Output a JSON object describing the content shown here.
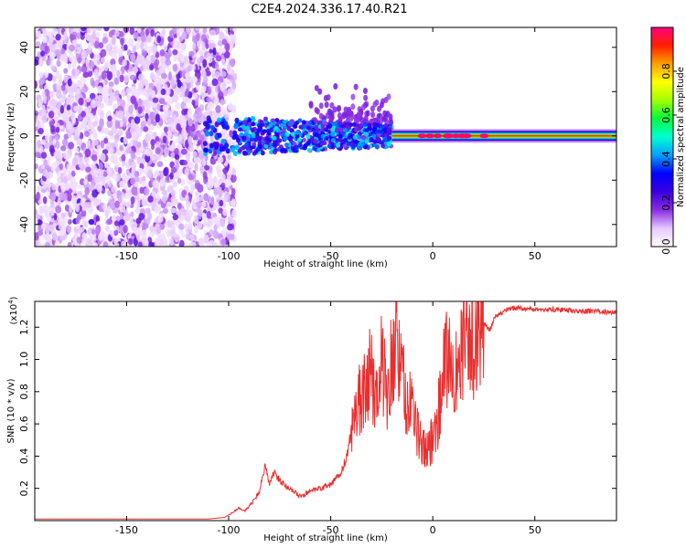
{
  "title": "C2E4.2024.336.17.40.R21",
  "colors": {
    "snr_line": "#e83030",
    "frame": "#000000",
    "colormap": [
      "#ffffff",
      "#e6c8ff",
      "#8a2be2",
      "#3a00e0",
      "#0000ff",
      "#00a0ff",
      "#00ffd0",
      "#00ff40",
      "#a0ff00",
      "#ffff00",
      "#ffa000",
      "#ff2000",
      "#ff0080"
    ]
  },
  "chart_data": [
    {
      "type": "heatmap",
      "xlabel": "Height of straight line (km)",
      "ylabel": "Frequency (Hz)",
      "xlim": [
        -195,
        90
      ],
      "ylim": [
        -50,
        49
      ],
      "xticks": [
        -150,
        -100,
        -50,
        0,
        50
      ],
      "xtick_labels": [
        "-150",
        "-100",
        "-50",
        "0",
        "50"
      ],
      "yticks": [
        -40,
        -20,
        0,
        20,
        40
      ],
      "ytick_labels": [
        "-40",
        "-20",
        "0",
        "20",
        "40"
      ],
      "colorbar": {
        "label": "Normalized spectral amplitude",
        "range": [
          0,
          1
        ],
        "ticks": [
          0.0,
          0.2,
          0.4,
          0.6,
          0.8
        ],
        "tick_labels": [
          "0.0",
          "0.2",
          "0.4",
          "0.6",
          "0.8"
        ]
      },
      "features": [
        {
          "region": "noise",
          "x_range": [
            -195,
            -97
          ],
          "y_range": [
            -50,
            49
          ],
          "amplitude": 0.1
        },
        {
          "region": "onset",
          "x_range": [
            -112,
            -95
          ],
          "y_range": [
            -8,
            8
          ],
          "amplitude": 0.35
        },
        {
          "region": "signal-band",
          "x_range": [
            -95,
            -20
          ],
          "y_center": 0,
          "y_halfwidth": 6,
          "amplitude": 0.45
        },
        {
          "region": "sidelobes",
          "x_range": [
            -60,
            -20
          ],
          "y_range": [
            5,
            24
          ],
          "amplitude": 0.15
        },
        {
          "region": "strong-carrier",
          "x_range": [
            -20,
            90
          ],
          "y_center": 0,
          "y_halfwidth": 2,
          "amplitude": 0.95
        }
      ]
    },
    {
      "type": "line",
      "xlabel": "Height of straight line (km)",
      "ylabel": "SNR (10 * v/v)",
      "yscale_label": "(x10",
      "yscale_exp": "4",
      "yscale_close": ")",
      "xlim": [
        -195,
        90
      ],
      "ylim": [
        0,
        1.36
      ],
      "xticks": [
        -150,
        -100,
        -50,
        0,
        50
      ],
      "xtick_labels": [
        "-150",
        "-100",
        "-50",
        "0",
        "50"
      ],
      "yticks": [
        0.2,
        0.4,
        0.6,
        0.8,
        1.0,
        1.2
      ],
      "ytick_labels": [
        "0.2",
        "0.4",
        "0.6",
        "0.8",
        "1.0",
        "1.2"
      ],
      "series": [
        {
          "x": [
            -195,
            -150,
            -110,
            -102,
            -98,
            -95,
            -92,
            -88,
            -85,
            -82,
            -80,
            -78,
            -75,
            -72,
            -70,
            -65,
            -60,
            -55,
            -50,
            -45,
            -42,
            -40,
            -38,
            -35,
            -32,
            -30,
            -28,
            -25,
            -22,
            -20,
            -18,
            -15,
            -12,
            -10,
            -8,
            -5,
            -2,
            0,
            2,
            5,
            8,
            10,
            12,
            15,
            18,
            20,
            22,
            25,
            28,
            30,
            32,
            35,
            40,
            50,
            60,
            70,
            80,
            90
          ],
          "y": [
            0.01,
            0.01,
            0.01,
            0.02,
            0.05,
            0.08,
            0.06,
            0.12,
            0.18,
            0.35,
            0.22,
            0.3,
            0.25,
            0.22,
            0.2,
            0.15,
            0.18,
            0.2,
            0.22,
            0.3,
            0.4,
            0.55,
            0.7,
            0.78,
            0.85,
            0.95,
            0.72,
            1.0,
            0.8,
            1.02,
            1.12,
            0.9,
            0.65,
            0.8,
            0.55,
            0.45,
            0.42,
            0.55,
            0.6,
            0.9,
            1.05,
            1.0,
            0.85,
            1.1,
            1.05,
            1.1,
            1.18,
            1.22,
            1.18,
            1.25,
            1.28,
            1.3,
            1.32,
            1.31,
            1.31,
            1.3,
            1.3,
            1.29
          ]
        }
      ]
    }
  ]
}
